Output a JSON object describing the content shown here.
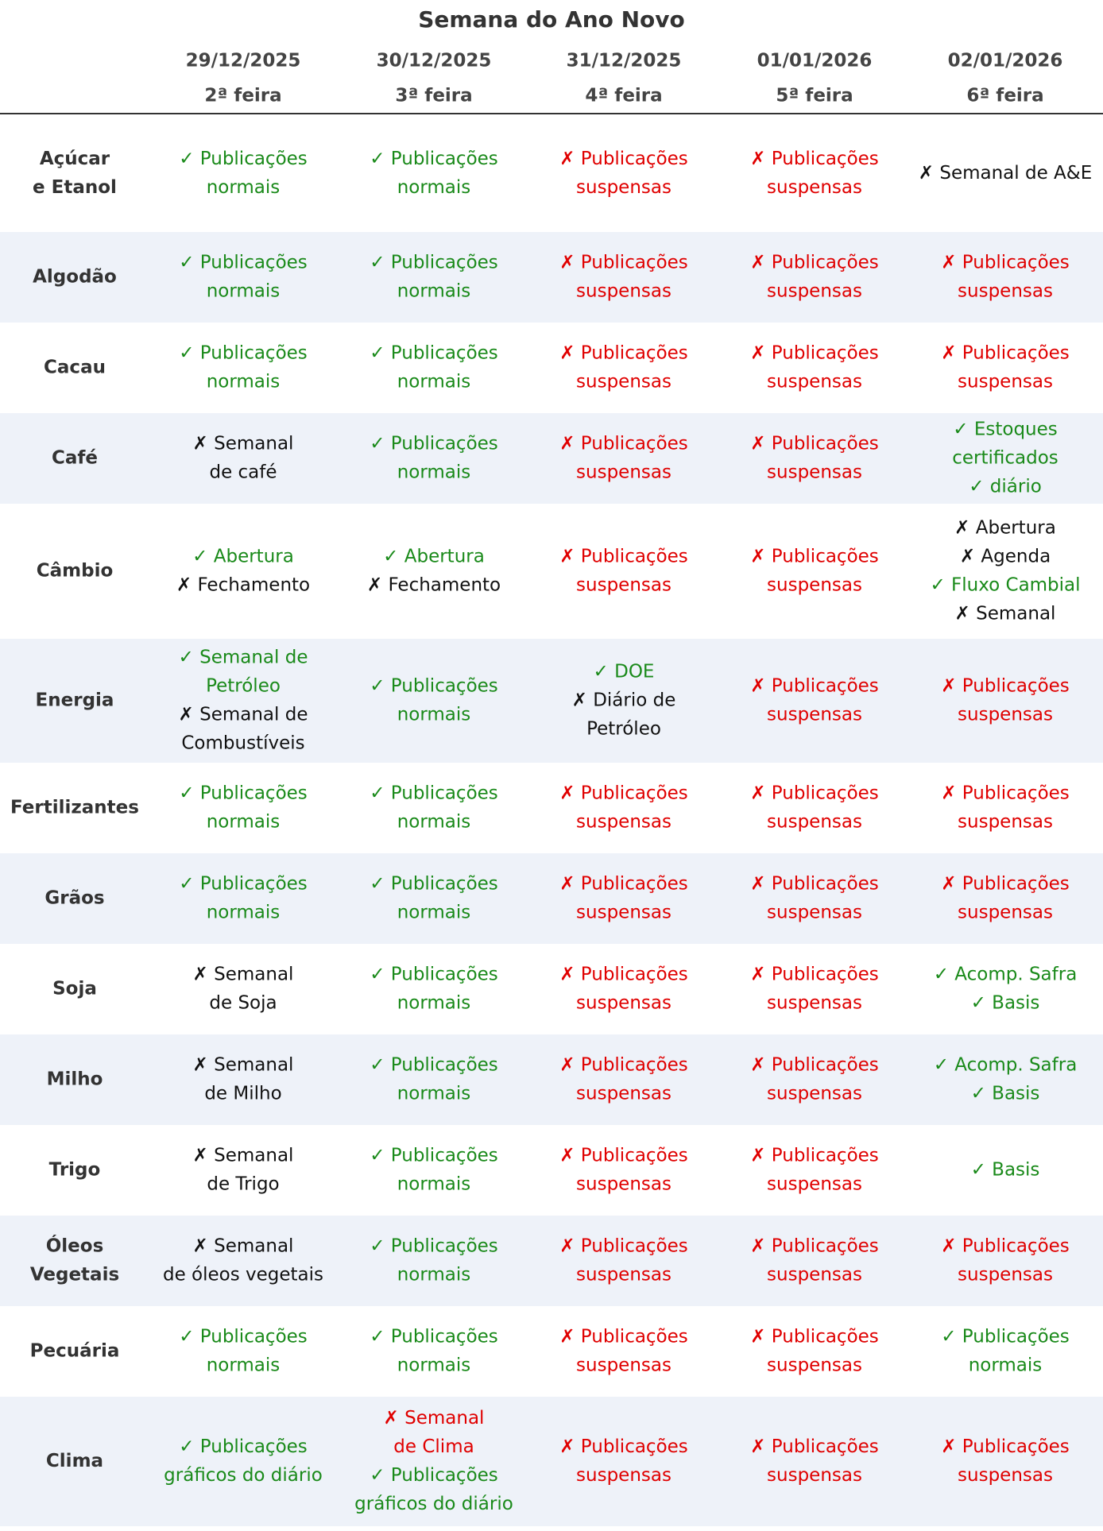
{
  "title": "Semana do Ano Novo",
  "colors": {
    "ok": "#1a8a1a",
    "no": "#e00000",
    "neutral": "#111111"
  },
  "columns": [
    {
      "date": "29/12/2025",
      "weekday": "2ª feira"
    },
    {
      "date": "30/12/2025",
      "weekday": "3ª feira"
    },
    {
      "date": "31/12/2025",
      "weekday": "4ª feira"
    },
    {
      "date": "01/01/2026",
      "weekday": "5ª feira"
    },
    {
      "date": "02/01/2026",
      "weekday": "6ª feira"
    }
  ],
  "rows": [
    {
      "label": [
        "Açúcar",
        "e Etanol"
      ],
      "cells": [
        [
          {
            "text": "✓ Publicações",
            "tone": "ok"
          },
          {
            "text": "normais",
            "tone": "ok"
          }
        ],
        [
          {
            "text": "✓ Publicações",
            "tone": "ok"
          },
          {
            "text": "normais",
            "tone": "ok"
          }
        ],
        [
          {
            "text": "✗ Publicações",
            "tone": "no"
          },
          {
            "text": "suspensas",
            "tone": "no"
          }
        ],
        [
          {
            "text": "✗ Publicações",
            "tone": "no"
          },
          {
            "text": "suspensas",
            "tone": "no"
          }
        ],
        [
          {
            "text": "✗ Semanal de A&E",
            "tone": "neutral"
          }
        ]
      ]
    },
    {
      "label": [
        "Algodão"
      ],
      "cells": [
        [
          {
            "text": "✓ Publicações",
            "tone": "ok"
          },
          {
            "text": "normais",
            "tone": "ok"
          }
        ],
        [
          {
            "text": "✓ Publicações",
            "tone": "ok"
          },
          {
            "text": "normais",
            "tone": "ok"
          }
        ],
        [
          {
            "text": "✗ Publicações",
            "tone": "no"
          },
          {
            "text": "suspensas",
            "tone": "no"
          }
        ],
        [
          {
            "text": "✗ Publicações",
            "tone": "no"
          },
          {
            "text": "suspensas",
            "tone": "no"
          }
        ],
        [
          {
            "text": "✗ Publicações",
            "tone": "no"
          },
          {
            "text": "suspensas",
            "tone": "no"
          }
        ]
      ]
    },
    {
      "label": [
        "Cacau"
      ],
      "cells": [
        [
          {
            "text": "✓ Publicações",
            "tone": "ok"
          },
          {
            "text": "normais",
            "tone": "ok"
          }
        ],
        [
          {
            "text": "✓ Publicações",
            "tone": "ok"
          },
          {
            "text": "normais",
            "tone": "ok"
          }
        ],
        [
          {
            "text": "✗ Publicações",
            "tone": "no"
          },
          {
            "text": "suspensas",
            "tone": "no"
          }
        ],
        [
          {
            "text": "✗ Publicações",
            "tone": "no"
          },
          {
            "text": "suspensas",
            "tone": "no"
          }
        ],
        [
          {
            "text": "✗ Publicações",
            "tone": "no"
          },
          {
            "text": "suspensas",
            "tone": "no"
          }
        ]
      ]
    },
    {
      "label": [
        "Café"
      ],
      "cells": [
        [
          {
            "text": "✗ Semanal",
            "tone": "neutral"
          },
          {
            "text": "de café",
            "tone": "neutral"
          }
        ],
        [
          {
            "text": "✓ Publicações",
            "tone": "ok"
          },
          {
            "text": "normais",
            "tone": "ok"
          }
        ],
        [
          {
            "text": "✗ Publicações",
            "tone": "no"
          },
          {
            "text": "suspensas",
            "tone": "no"
          }
        ],
        [
          {
            "text": "✗ Publicações",
            "tone": "no"
          },
          {
            "text": "suspensas",
            "tone": "no"
          }
        ],
        [
          {
            "text": "✓ Estoques",
            "tone": "ok"
          },
          {
            "text": "certificados",
            "tone": "ok"
          },
          {
            "text": "✓ diário",
            "tone": "ok"
          }
        ]
      ]
    },
    {
      "label": [
        "Câmbio"
      ],
      "cells": [
        [
          {
            "text": "✓ Abertura",
            "tone": "ok"
          },
          {
            "text": "✗ Fechamento",
            "tone": "neutral"
          }
        ],
        [
          {
            "text": "✓ Abertura",
            "tone": "ok"
          },
          {
            "text": "✗ Fechamento",
            "tone": "neutral"
          }
        ],
        [
          {
            "text": "✗ Publicações",
            "tone": "no"
          },
          {
            "text": "suspensas",
            "tone": "no"
          }
        ],
        [
          {
            "text": "✗ Publicações",
            "tone": "no"
          },
          {
            "text": "suspensas",
            "tone": "no"
          }
        ],
        [
          {
            "text": "✗ Abertura",
            "tone": "neutral"
          },
          {
            "text": "✗ Agenda",
            "tone": "neutral"
          },
          {
            "text": "✓ Fluxo Cambial",
            "tone": "ok"
          },
          {
            "text": "✗ Semanal",
            "tone": "neutral"
          }
        ]
      ]
    },
    {
      "label": [
        "Energia"
      ],
      "cells": [
        [
          {
            "text": "✓ Semanal de",
            "tone": "ok"
          },
          {
            "text": "Petróleo",
            "tone": "ok"
          },
          {
            "text": "✗ Semanal de",
            "tone": "neutral"
          },
          {
            "text": "Combustíveis",
            "tone": "neutral"
          }
        ],
        [
          {
            "text": "✓ Publicações",
            "tone": "ok"
          },
          {
            "text": "normais",
            "tone": "ok"
          }
        ],
        [
          {
            "text": "✓ DOE",
            "tone": "ok"
          },
          {
            "text": "✗ Diário de",
            "tone": "neutral"
          },
          {
            "text": "Petróleo",
            "tone": "neutral"
          }
        ],
        [
          {
            "text": "✗ Publicações",
            "tone": "no"
          },
          {
            "text": "suspensas",
            "tone": "no"
          }
        ],
        [
          {
            "text": "✗ Publicações",
            "tone": "no"
          },
          {
            "text": "suspensas",
            "tone": "no"
          }
        ]
      ]
    },
    {
      "label": [
        "Fertilizantes"
      ],
      "cells": [
        [
          {
            "text": "✓ Publicações",
            "tone": "ok"
          },
          {
            "text": "normais",
            "tone": "ok"
          }
        ],
        [
          {
            "text": "✓ Publicações",
            "tone": "ok"
          },
          {
            "text": "normais",
            "tone": "ok"
          }
        ],
        [
          {
            "text": "✗ Publicações",
            "tone": "no"
          },
          {
            "text": "suspensas",
            "tone": "no"
          }
        ],
        [
          {
            "text": "✗ Publicações",
            "tone": "no"
          },
          {
            "text": "suspensas",
            "tone": "no"
          }
        ],
        [
          {
            "text": "✗ Publicações",
            "tone": "no"
          },
          {
            "text": "suspensas",
            "tone": "no"
          }
        ]
      ]
    },
    {
      "label": [
        "Grãos"
      ],
      "cells": [
        [
          {
            "text": "✓ Publicações",
            "tone": "ok"
          },
          {
            "text": "normais",
            "tone": "ok"
          }
        ],
        [
          {
            "text": "✓ Publicações",
            "tone": "ok"
          },
          {
            "text": "normais",
            "tone": "ok"
          }
        ],
        [
          {
            "text": "✗ Publicações",
            "tone": "no"
          },
          {
            "text": "suspensas",
            "tone": "no"
          }
        ],
        [
          {
            "text": "✗ Publicações",
            "tone": "no"
          },
          {
            "text": "suspensas",
            "tone": "no"
          }
        ],
        [
          {
            "text": "✗ Publicações",
            "tone": "no"
          },
          {
            "text": "suspensas",
            "tone": "no"
          }
        ]
      ]
    },
    {
      "label": [
        "Soja"
      ],
      "cells": [
        [
          {
            "text": "✗ Semanal",
            "tone": "neutral"
          },
          {
            "text": "de Soja",
            "tone": "neutral"
          }
        ],
        [
          {
            "text": "✓ Publicações",
            "tone": "ok"
          },
          {
            "text": "normais",
            "tone": "ok"
          }
        ],
        [
          {
            "text": "✗ Publicações",
            "tone": "no"
          },
          {
            "text": "suspensas",
            "tone": "no"
          }
        ],
        [
          {
            "text": "✗ Publicações",
            "tone": "no"
          },
          {
            "text": "suspensas",
            "tone": "no"
          }
        ],
        [
          {
            "text": "✓ Acomp. Safra",
            "tone": "ok"
          },
          {
            "text": "✓ Basis",
            "tone": "ok"
          }
        ]
      ]
    },
    {
      "label": [
        "Milho"
      ],
      "cells": [
        [
          {
            "text": "✗ Semanal",
            "tone": "neutral"
          },
          {
            "text": "de Milho",
            "tone": "neutral"
          }
        ],
        [
          {
            "text": "✓ Publicações",
            "tone": "ok"
          },
          {
            "text": "normais",
            "tone": "ok"
          }
        ],
        [
          {
            "text": "✗ Publicações",
            "tone": "no"
          },
          {
            "text": "suspensas",
            "tone": "no"
          }
        ],
        [
          {
            "text": "✗ Publicações",
            "tone": "no"
          },
          {
            "text": "suspensas",
            "tone": "no"
          }
        ],
        [
          {
            "text": "✓ Acomp. Safra",
            "tone": "ok"
          },
          {
            "text": "✓ Basis",
            "tone": "ok"
          }
        ]
      ]
    },
    {
      "label": [
        "Trigo"
      ],
      "cells": [
        [
          {
            "text": "✗ Semanal",
            "tone": "neutral"
          },
          {
            "text": "de Trigo",
            "tone": "neutral"
          }
        ],
        [
          {
            "text": "✓ Publicações",
            "tone": "ok"
          },
          {
            "text": "normais",
            "tone": "ok"
          }
        ],
        [
          {
            "text": "✗ Publicações",
            "tone": "no"
          },
          {
            "text": "suspensas",
            "tone": "no"
          }
        ],
        [
          {
            "text": "✗ Publicações",
            "tone": "no"
          },
          {
            "text": "suspensas",
            "tone": "no"
          }
        ],
        [
          {
            "text": "✓ Basis",
            "tone": "ok"
          }
        ]
      ]
    },
    {
      "label": [
        "Óleos",
        "Vegetais"
      ],
      "cells": [
        [
          {
            "text": "✗ Semanal",
            "tone": "neutral"
          },
          {
            "text": "de óleos vegetais",
            "tone": "neutral"
          }
        ],
        [
          {
            "text": "✓ Publicações",
            "tone": "ok"
          },
          {
            "text": "normais",
            "tone": "ok"
          }
        ],
        [
          {
            "text": "✗ Publicações",
            "tone": "no"
          },
          {
            "text": "suspensas",
            "tone": "no"
          }
        ],
        [
          {
            "text": "✗ Publicações",
            "tone": "no"
          },
          {
            "text": "suspensas",
            "tone": "no"
          }
        ],
        [
          {
            "text": "✗ Publicações",
            "tone": "no"
          },
          {
            "text": "suspensas",
            "tone": "no"
          }
        ]
      ]
    },
    {
      "label": [
        "Pecuária"
      ],
      "cells": [
        [
          {
            "text": "✓ Publicações",
            "tone": "ok"
          },
          {
            "text": "normais",
            "tone": "ok"
          }
        ],
        [
          {
            "text": "✓ Publicações",
            "tone": "ok"
          },
          {
            "text": "normais",
            "tone": "ok"
          }
        ],
        [
          {
            "text": "✗ Publicações",
            "tone": "no"
          },
          {
            "text": "suspensas",
            "tone": "no"
          }
        ],
        [
          {
            "text": "✗ Publicações",
            "tone": "no"
          },
          {
            "text": "suspensas",
            "tone": "no"
          }
        ],
        [
          {
            "text": "✓ Publicações",
            "tone": "ok"
          },
          {
            "text": "normais",
            "tone": "ok"
          }
        ]
      ]
    },
    {
      "label": [
        "Clima"
      ],
      "cells": [
        [
          {
            "text": "✓ Publicações",
            "tone": "ok"
          },
          {
            "text": "gráficos do diário",
            "tone": "ok"
          }
        ],
        [
          {
            "text": "✗ Semanal",
            "tone": "no"
          },
          {
            "text": "de Clima",
            "tone": "no"
          },
          {
            "text": "✓ Publicações",
            "tone": "ok"
          },
          {
            "text": "gráficos do diário",
            "tone": "ok"
          }
        ],
        [
          {
            "text": "✗ Publicações",
            "tone": "no"
          },
          {
            "text": "suspensas",
            "tone": "no"
          }
        ],
        [
          {
            "text": "✗ Publicações",
            "tone": "no"
          },
          {
            "text": "suspensas",
            "tone": "no"
          }
        ],
        [
          {
            "text": "✗ Publicações",
            "tone": "no"
          },
          {
            "text": "suspensas",
            "tone": "no"
          }
        ]
      ]
    }
  ]
}
